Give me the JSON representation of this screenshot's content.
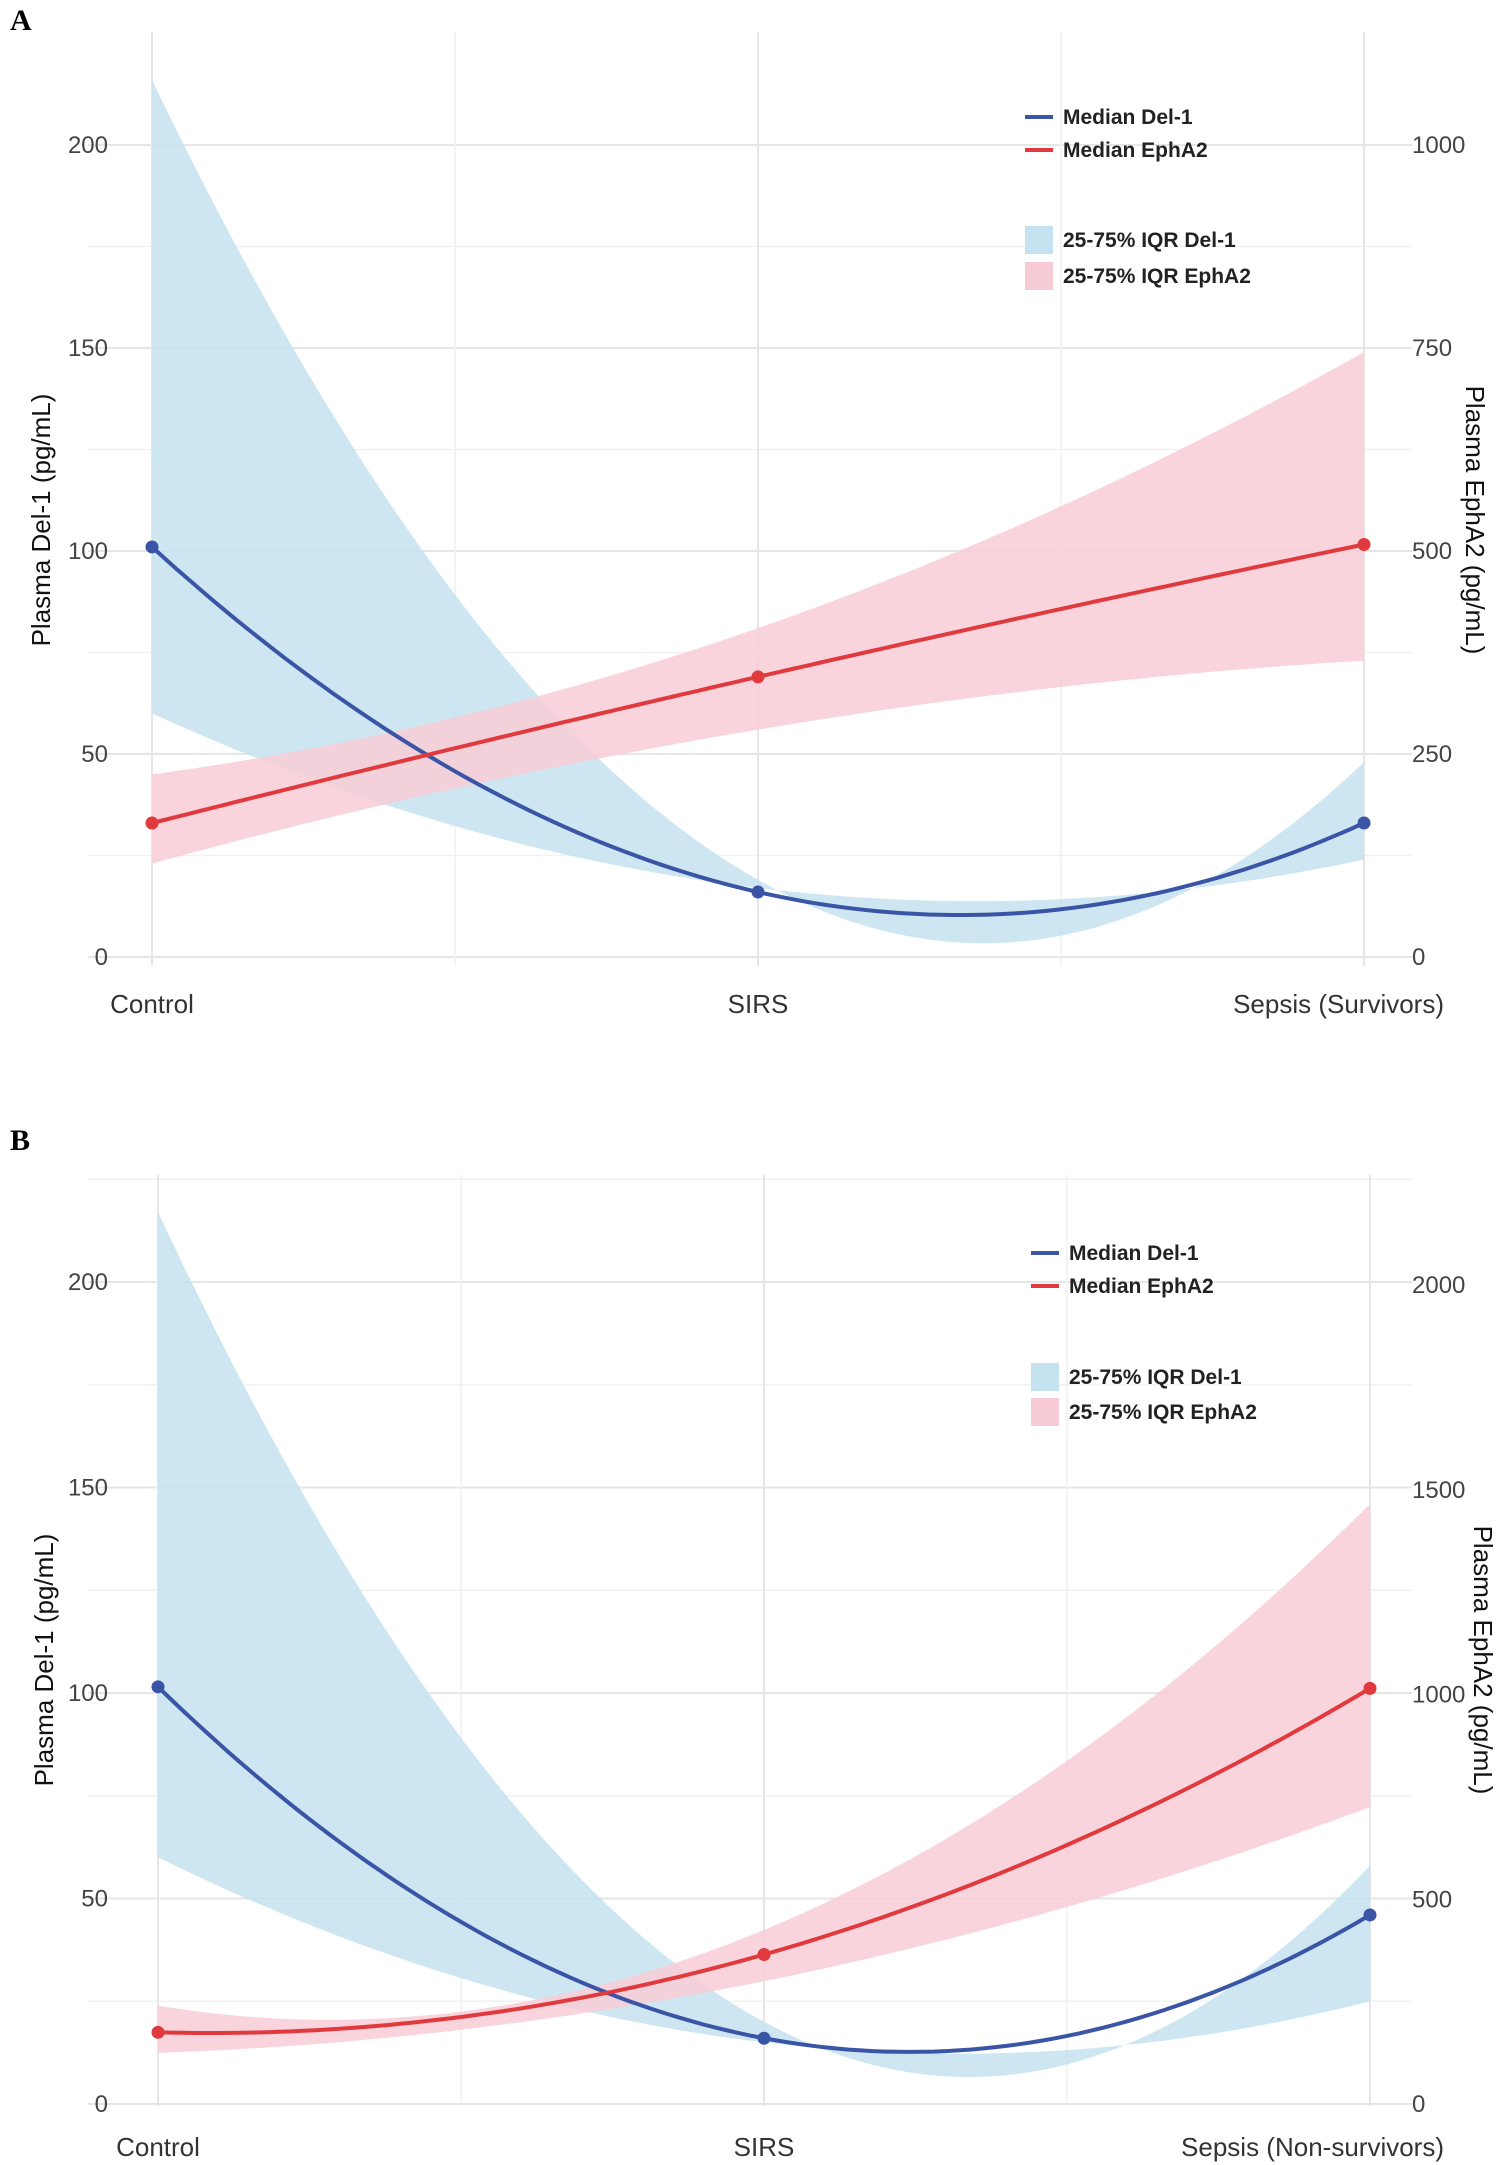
{
  "colors": {
    "del1_line": "#3a55a5",
    "epha2_line": "#e03a3e",
    "del1_band": "#c4e2ef",
    "epha2_band": "#f8ccd6"
  },
  "chart_data": [
    {
      "panel": "A",
      "type": "line",
      "categories": [
        "Control",
        "SIRS",
        "Sepsis (Survivors)"
      ],
      "ylabel_left": "Plasma Del-1 (pg/mL)",
      "ylabel_right": "Plasma EphA2 (pg/mL)",
      "ylim_left": [
        0,
        220
      ],
      "ylim_right": [
        0,
        1100
      ],
      "yticks_left": [
        0,
        50,
        100,
        150,
        200
      ],
      "yticks_right": [
        0,
        250,
        500,
        750,
        1000
      ],
      "legend": {
        "median_del1": "Median Del-1",
        "median_epha2": "Median EphA2",
        "iqr_del1": "25-75% IQR Del-1",
        "iqr_epha2": "25-75% IQR EphA2",
        "position": "top-right"
      },
      "series": [
        {
          "name": "Median Del-1",
          "axis": "left",
          "values": [
            101,
            16,
            33
          ]
        },
        {
          "name": "Median EphA2",
          "axis": "right",
          "values": [
            165,
            345,
            508
          ]
        }
      ],
      "bands": [
        {
          "name": "25-75% IQR Del-1",
          "axis": "left",
          "lower": [
            60,
            17,
            24
          ],
          "upper": [
            216,
            19,
            48
          ]
        },
        {
          "name": "25-75% IQR EphA2",
          "axis": "right",
          "lower": [
            115,
            280,
            365
          ],
          "upper": [
            225,
            405,
            745
          ]
        }
      ]
    },
    {
      "panel": "B",
      "type": "line",
      "categories": [
        "Control",
        "SIRS",
        "Sepsis (Non-survivors)"
      ],
      "ylabel_left": "Plasma Del-1 (pg/mL)",
      "ylabel_right": "Plasma EphA2 (pg/mL)",
      "ylim_left": [
        0,
        225
      ],
      "ylim_right": [
        0,
        2250
      ],
      "yticks_left": [
        0,
        50,
        100,
        150,
        200
      ],
      "yticks_right": [
        0,
        500,
        1000,
        1500,
        2000
      ],
      "legend": {
        "median_del1": "Median Del-1",
        "median_epha2": "Median EphA2",
        "iqr_del1": "25-75% IQR Del-1",
        "iqr_epha2": "25-75% IQR EphA2",
        "position": "top-right"
      },
      "series": [
        {
          "name": "Median Del-1",
          "axis": "left",
          "values": [
            101.5,
            16,
            46
          ]
        },
        {
          "name": "Median EphA2",
          "axis": "right",
          "values": [
            175,
            365,
            1015
          ]
        }
      ],
      "bands": [
        {
          "name": "25-75% IQR Del-1",
          "axis": "left",
          "lower": [
            60,
            15,
            25
          ],
          "upper": [
            217,
            20,
            58
          ]
        },
        {
          "name": "25-75% IQR EphA2",
          "axis": "right",
          "lower": [
            125,
            300,
            725
          ],
          "upper": [
            240,
            425,
            1465
          ]
        }
      ]
    }
  ]
}
